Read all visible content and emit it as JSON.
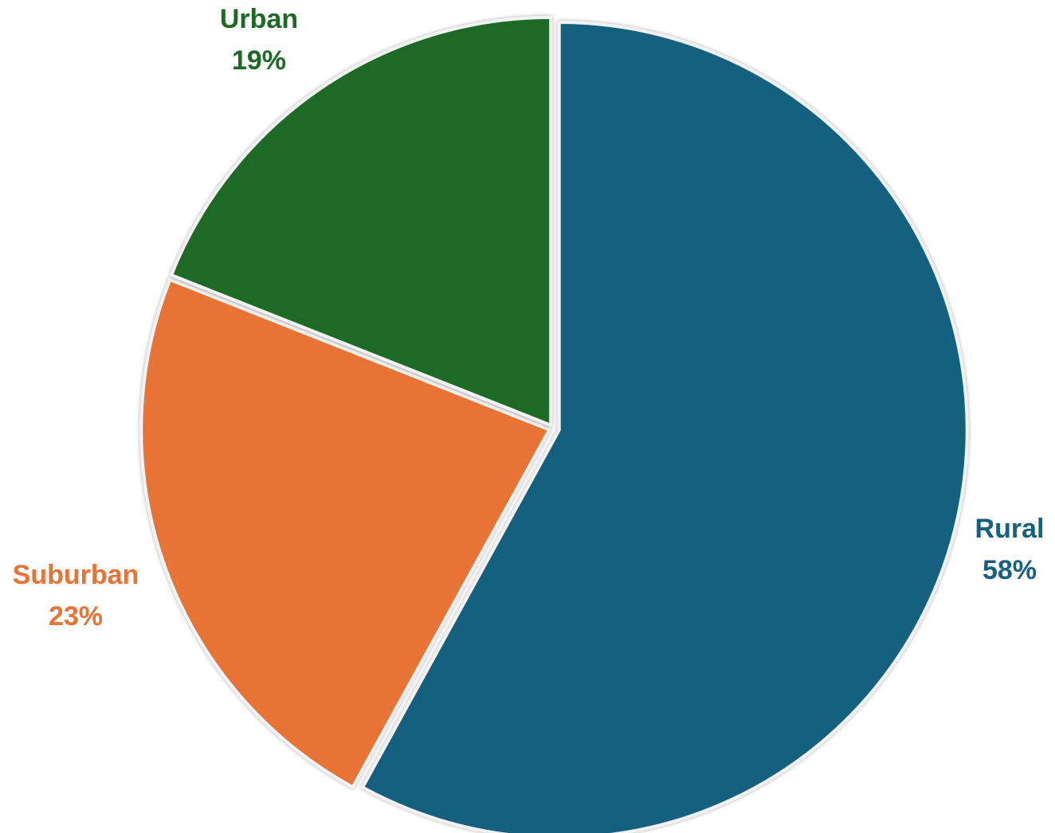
{
  "chart_data": {
    "type": "pie",
    "title": "",
    "legend": "none",
    "slices": [
      {
        "label": "Rural",
        "value": 58,
        "display": "58%",
        "color": "#17607f"
      },
      {
        "label": "Suburban",
        "value": 23,
        "display": "23%",
        "color": "#e97334"
      },
      {
        "label": "Urban",
        "value": 19,
        "display": "19%",
        "color": "#1d6a27"
      }
    ]
  }
}
